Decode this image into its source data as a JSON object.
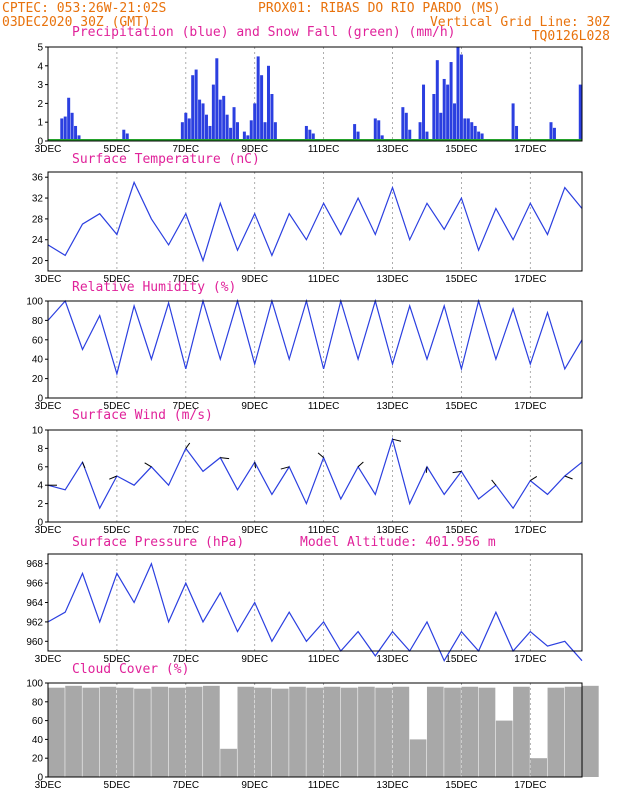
{
  "header": {
    "line1_left": "CPTEC:  053:26W-21:02S",
    "line1_right": "PROX01: RIBAS DO RIO PARDO (MS)",
    "line2_left": "03DEC2020 30Z (GMT)",
    "line2_right": "Vertical Grid Line: 30Z",
    "line3_right": "TQ0126L028"
  },
  "x_ticks": [
    "3DEC",
    "5DEC",
    "7DEC",
    "9DEC",
    "11DEC",
    "13DEC",
    "15DEC",
    "17DEC"
  ],
  "chart_data": [
    {
      "type": "bar",
      "id": "precip",
      "title": "Precipitation (blue) and Snow Fall (green) (mm/h)",
      "ylim": [
        0,
        5
      ],
      "yticks": [
        0,
        1,
        2,
        3,
        4,
        5
      ],
      "x_range_days": [
        0,
        15.5
      ],
      "series": [
        {
          "name": "Precipitation",
          "color": "#2b3fe0",
          "x": [
            0.4,
            0.5,
            0.6,
            0.7,
            0.8,
            0.9,
            2.2,
            2.3,
            3.9,
            4.0,
            4.1,
            4.2,
            4.3,
            4.4,
            4.5,
            4.6,
            4.7,
            4.8,
            4.9,
            5.0,
            5.1,
            5.2,
            5.3,
            5.4,
            5.5,
            5.7,
            5.8,
            5.9,
            6.0,
            6.1,
            6.2,
            6.3,
            6.4,
            6.5,
            6.6,
            7.5,
            7.6,
            7.7,
            8.9,
            9.0,
            9.5,
            9.6,
            9.7,
            10.3,
            10.4,
            10.5,
            10.8,
            10.9,
            11.0,
            11.2,
            11.3,
            11.4,
            11.5,
            11.6,
            11.7,
            11.8,
            11.9,
            12.0,
            12.1,
            12.2,
            12.3,
            12.4,
            12.5,
            12.6,
            13.5,
            13.6,
            14.6,
            14.7,
            15.45
          ],
          "values": [
            1.2,
            1.3,
            2.3,
            1.5,
            0.8,
            0.3,
            0.6,
            0.4,
            1.0,
            1.5,
            1.2,
            3.5,
            3.8,
            2.2,
            2.0,
            1.4,
            0.8,
            3.0,
            4.4,
            2.2,
            2.4,
            1.4,
            0.7,
            1.8,
            1.0,
            0.5,
            0.3,
            1.1,
            2.0,
            4.5,
            3.5,
            1.0,
            4.0,
            2.5,
            1.0,
            0.8,
            0.6,
            0.4,
            0.9,
            0.5,
            1.2,
            1.1,
            0.3,
            1.8,
            1.5,
            0.6,
            1.0,
            3.0,
            0.5,
            2.5,
            4.3,
            1.5,
            3.3,
            3.0,
            4.2,
            2.0,
            5.0,
            4.6,
            1.2,
            1.2,
            1.0,
            0.8,
            0.5,
            0.4,
            2.0,
            0.8,
            1.0,
            0.7,
            3.0
          ]
        },
        {
          "name": "Snow Fall",
          "color": "#23a22a",
          "x": [
            0,
            15.5
          ],
          "values": [
            0,
            0
          ]
        }
      ]
    },
    {
      "type": "line",
      "id": "temp",
      "title": "Surface Temperature (nC)",
      "ylim": [
        18,
        37
      ],
      "yticks": [
        20,
        24,
        28,
        32,
        36
      ],
      "x": [
        0,
        0.5,
        1,
        1.5,
        2,
        2.5,
        3,
        3.5,
        4,
        4.5,
        5,
        5.5,
        6,
        6.5,
        7,
        7.5,
        8,
        8.5,
        9,
        9.5,
        10,
        10.5,
        11,
        11.5,
        12,
        12.5,
        13,
        13.5,
        14,
        14.5,
        15,
        15.5
      ],
      "values": [
        23,
        21,
        27,
        29,
        25,
        35,
        28,
        23,
        29,
        20,
        31,
        22,
        29,
        21,
        29,
        24,
        31,
        25,
        32,
        25,
        34,
        24,
        31,
        26,
        32,
        22,
        30,
        24,
        31,
        25,
        34,
        30
      ]
    },
    {
      "type": "line",
      "id": "rh",
      "title": "Relative Humidity (%)",
      "ylim": [
        0,
        100
      ],
      "yticks": [
        0,
        20,
        40,
        60,
        80,
        100
      ],
      "x": [
        0,
        0.5,
        1,
        1.5,
        2,
        2.5,
        3,
        3.5,
        4,
        4.5,
        5,
        5.5,
        6,
        6.5,
        7,
        7.5,
        8,
        8.5,
        9,
        9.5,
        10,
        10.5,
        11,
        11.5,
        12,
        12.5,
        13,
        13.5,
        14,
        14.5,
        15,
        15.5
      ],
      "values": [
        80,
        100,
        50,
        85,
        25,
        95,
        40,
        98,
        30,
        100,
        40,
        100,
        35,
        100,
        40,
        100,
        30,
        100,
        40,
        100,
        35,
        95,
        40,
        95,
        30,
        100,
        40,
        92,
        35,
        88,
        30,
        60
      ]
    },
    {
      "type": "line",
      "id": "wind",
      "title": "Surface Wind (m/s)",
      "ylim": [
        0,
        10
      ],
      "yticks": [
        0,
        2,
        4,
        6,
        8,
        10
      ],
      "x": [
        0,
        0.5,
        1,
        1.5,
        2,
        2.5,
        3,
        3.5,
        4,
        4.5,
        5,
        5.5,
        6,
        6.5,
        7,
        7.5,
        8,
        8.5,
        9,
        9.5,
        10,
        10.5,
        11,
        11.5,
        12,
        12.5,
        13,
        13.5,
        14,
        14.5,
        15,
        15.5
      ],
      "values": [
        4,
        3.5,
        6.5,
        1.5,
        5,
        4,
        6,
        4,
        8,
        5.5,
        7,
        3.5,
        6.5,
        3,
        6,
        2,
        7,
        2.5,
        6,
        3,
        9,
        2,
        6,
        3,
        5.5,
        2.5,
        4,
        1.5,
        4.5,
        3,
        5,
        6.5
      ]
    },
    {
      "type": "line",
      "id": "pres",
      "title": "Surface Pressure (hPa)",
      "subtitle": "Model Altitude: 401.956 m",
      "ylim": [
        959,
        969
      ],
      "yticks": [
        960,
        962,
        964,
        966,
        968
      ],
      "x": [
        0,
        0.5,
        1,
        1.5,
        2,
        2.5,
        3,
        3.5,
        4,
        4.5,
        5,
        5.5,
        6,
        6.5,
        7,
        7.5,
        8,
        8.5,
        9,
        9.5,
        10,
        10.5,
        11,
        11.5,
        12,
        12.5,
        13,
        13.5,
        14,
        14.5,
        15,
        15.5
      ],
      "values": [
        962,
        963,
        967,
        962,
        967,
        964,
        968,
        962,
        966,
        962,
        965,
        961,
        964,
        960,
        963,
        960,
        962,
        959,
        961,
        958.5,
        961,
        959,
        962,
        958,
        961,
        959,
        963,
        959,
        961,
        959.5,
        960,
        958
      ]
    },
    {
      "type": "bar",
      "id": "cloud",
      "title": "Cloud Cover (%)",
      "ylim": [
        0,
        100
      ],
      "yticks": [
        0,
        20,
        40,
        60,
        80,
        100
      ],
      "color": "#a8a8a8",
      "x": [
        0,
        0.5,
        1,
        1.5,
        2,
        2.5,
        3,
        3.5,
        4,
        4.5,
        5,
        5.5,
        6,
        6.5,
        7,
        7.5,
        8,
        8.5,
        9,
        9.5,
        10,
        10.5,
        11,
        11.5,
        12,
        12.5,
        13,
        13.5,
        14,
        14.5,
        15,
        15.5
      ],
      "values": [
        95,
        97,
        95,
        96,
        95,
        94,
        96,
        95,
        96,
        97,
        30,
        96,
        95,
        94,
        96,
        95,
        96,
        95,
        96,
        95,
        96,
        40,
        96,
        95,
        96,
        95,
        60,
        96,
        20,
        95,
        96,
        97
      ]
    }
  ]
}
